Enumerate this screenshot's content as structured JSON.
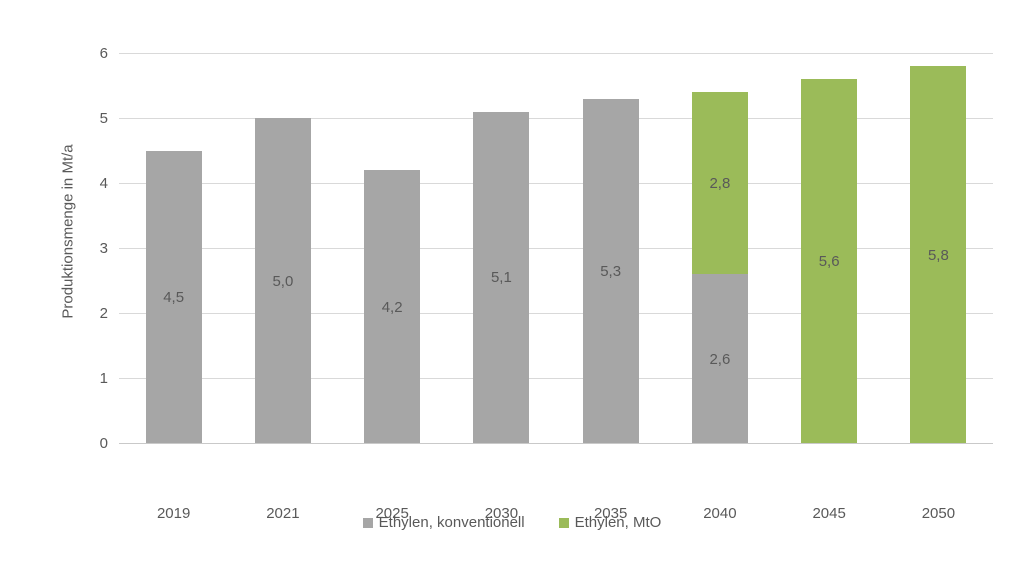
{
  "chart_data": {
    "type": "bar",
    "stacked": true,
    "title": "",
    "xlabel": "",
    "ylabel": "Produktionsmenge in Mt/a",
    "ylim": [
      0,
      6
    ],
    "yticks": [
      0,
      1,
      2,
      3,
      4,
      5,
      6
    ],
    "grid": true,
    "legend_position": "bottom",
    "decimal_separator": ",",
    "categories": [
      "2019",
      "2021",
      "2025",
      "2030",
      "2035",
      "2040",
      "2045",
      "2050"
    ],
    "series": [
      {
        "name": "Ethylen, konventionell",
        "color": "#A6A6A6",
        "values": [
          4.5,
          5.0,
          4.2,
          5.1,
          5.3,
          2.6,
          null,
          null
        ],
        "labels": [
          "4,5",
          "5,0",
          "4,2",
          "5,1",
          "5,3",
          "2,6",
          "",
          ""
        ]
      },
      {
        "name": "Ethylen, MtO",
        "color": "#9BBB59",
        "values": [
          null,
          null,
          null,
          null,
          null,
          2.8,
          5.6,
          5.8
        ],
        "labels": [
          "",
          "",
          "",
          "",
          "",
          "2,8",
          "5,6",
          "5,8"
        ]
      }
    ],
    "text_color": "#595959",
    "grid_color": "#D9D9D9"
  }
}
